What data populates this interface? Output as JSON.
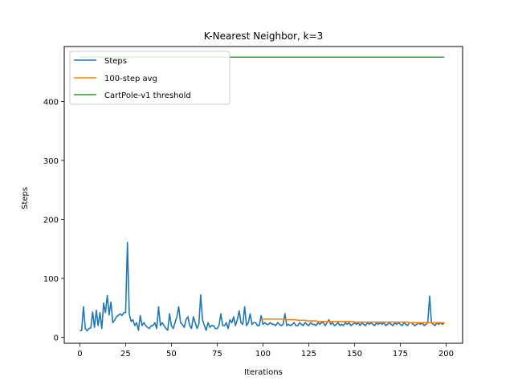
{
  "chart_data": {
    "type": "line",
    "title": "K-Nearest Neighbor, k=3",
    "xlabel": "Iterations",
    "ylabel": "Steps",
    "xlim": [
      -8.5,
      209
    ],
    "ylim": [
      -10,
      493
    ],
    "xticks": [
      0,
      25,
      50,
      75,
      100,
      125,
      150,
      175,
      200
    ],
    "yticks": [
      0,
      100,
      200,
      300,
      400
    ],
    "grid": false,
    "legend_position": "top-left",
    "series": [
      {
        "name": "Steps",
        "color": "#1f77b4",
        "x_start": 0,
        "values": [
          11,
          12,
          52,
          15,
          11,
          15,
          16,
          43,
          17,
          46,
          20,
          42,
          15,
          58,
          42,
          71,
          38,
          60,
          25,
          29,
          35,
          37,
          40,
          37,
          42,
          42,
          161,
          40,
          27,
          30,
          20,
          25,
          12,
          37,
          20,
          25,
          20,
          17,
          15,
          20,
          20,
          25,
          15,
          52,
          20,
          25,
          20,
          15,
          12,
          40,
          20,
          15,
          25,
          35,
          52,
          25,
          22,
          17,
          30,
          35,
          20,
          15,
          35,
          25,
          15,
          22,
          72,
          30,
          20,
          12,
          25,
          17,
          20,
          20,
          15,
          15,
          20,
          40,
          20,
          20,
          25,
          15,
          30,
          25,
          35,
          20,
          30,
          45,
          25,
          22,
          52,
          20,
          25,
          40,
          22,
          25,
          25,
          20,
          20,
          37,
          22,
          25,
          22,
          22,
          25,
          22,
          22,
          20,
          25,
          22,
          20,
          22,
          40,
          20,
          22,
          20,
          22,
          25,
          20,
          20,
          25,
          22,
          20,
          25,
          22,
          20,
          25,
          22,
          22,
          20,
          25,
          22,
          25,
          25,
          20,
          25,
          30,
          22,
          25,
          20,
          22,
          25,
          20,
          22,
          20,
          25,
          22,
          25,
          20,
          22,
          25,
          22,
          25,
          20,
          25,
          22,
          20,
          25,
          22,
          25,
          22,
          20,
          25,
          22,
          25,
          22,
          25,
          20,
          22,
          25,
          22,
          20,
          25,
          22,
          25,
          22,
          20,
          25,
          22,
          20,
          25,
          25,
          22,
          20,
          22,
          25,
          22,
          25,
          20,
          22,
          25,
          70,
          25,
          22,
          20,
          25,
          22,
          25,
          22,
          25
        ]
      },
      {
        "name": "100-step avg",
        "color": "#ff7f0e",
        "x_start": 99,
        "values": [
          31,
          31,
          31,
          31,
          31,
          31,
          31,
          31,
          31,
          31,
          31,
          31,
          31,
          31,
          30,
          30,
          30,
          30,
          30,
          30,
          29,
          29,
          29,
          29,
          29,
          28,
          28,
          28,
          28,
          28,
          28,
          27,
          27,
          27,
          27,
          27,
          27,
          27,
          27,
          27,
          27,
          27,
          27,
          27,
          27,
          27,
          27,
          27,
          27,
          27,
          27,
          26,
          26,
          26,
          26,
          26,
          26,
          26,
          26,
          26,
          26,
          26,
          26,
          26,
          26,
          26,
          26,
          26,
          26,
          26,
          26,
          26,
          26,
          26,
          26,
          26,
          26,
          26,
          26,
          26,
          26,
          25,
          25,
          25,
          25,
          25,
          25,
          25,
          25,
          25,
          25,
          25,
          25,
          25,
          25,
          25,
          25,
          25,
          25,
          25,
          25
        ]
      },
      {
        "name": "CartPole-v1 threshold",
        "color": "#2ca02c",
        "x": [
          0,
          199
        ],
        "values": [
          475,
          475
        ]
      }
    ]
  }
}
